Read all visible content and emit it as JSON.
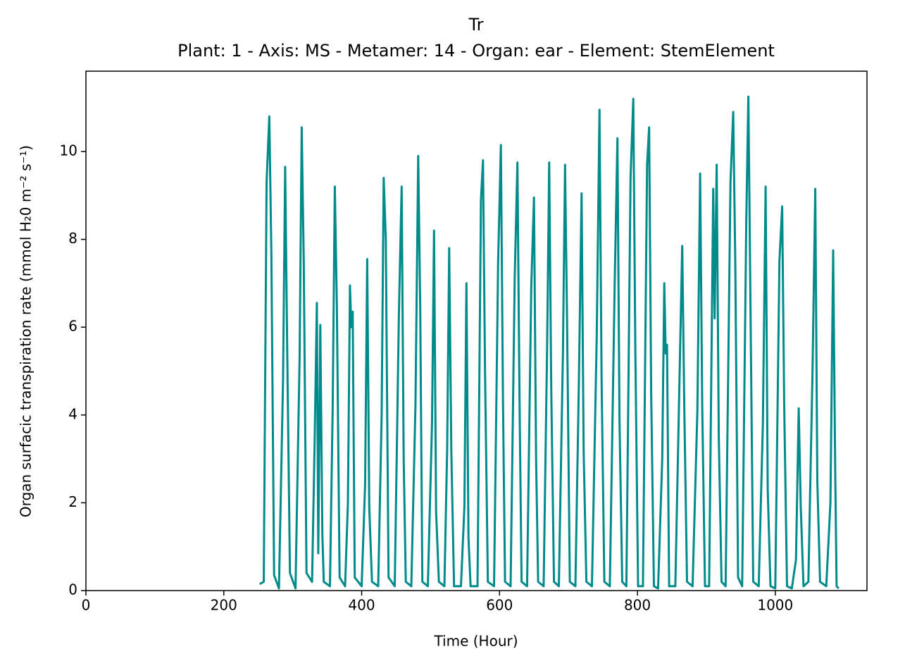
{
  "chart_data": {
    "type": "line",
    "title": "Tr",
    "subtitle": "Plant: 1 - Axis: MS - Metamer: 14 - Organ: ear - Element: StemElement",
    "xlabel": "Time (Hour)",
    "ylabel": "Organ surfacic transpiration rate (mmol H₂0 m⁻² s⁻¹)",
    "color": "#008b8b",
    "xlim": [
      0,
      1133
    ],
    "ylim": [
      0,
      11.83
    ],
    "xticks": [
      0,
      200,
      400,
      600,
      800,
      1000
    ],
    "yticks": [
      0,
      2,
      4,
      6,
      8,
      10
    ],
    "x": [
      252,
      258,
      262,
      266,
      269,
      273,
      280,
      286,
      289,
      292,
      296,
      304,
      310,
      313,
      316,
      320,
      328,
      332,
      335,
      337,
      340,
      343,
      345,
      354,
      358,
      361,
      364,
      368,
      376,
      380,
      383,
      385,
      387,
      390,
      400,
      405,
      408,
      411,
      415,
      424,
      429,
      432,
      435,
      439,
      448,
      454,
      458,
      461,
      464,
      472,
      478,
      482,
      485,
      488,
      496,
      502,
      505,
      508,
      512,
      520,
      524,
      527,
      530,
      534,
      544,
      549,
      552,
      555,
      558,
      568,
      573,
      576,
      579,
      583,
      592,
      598,
      602,
      605,
      608,
      616,
      622,
      626,
      629,
      632,
      640,
      646,
      650,
      653,
      656,
      664,
      669,
      672,
      675,
      679,
      686,
      692,
      695,
      698,
      702,
      710,
      715,
      719,
      722,
      726,
      734,
      741,
      745,
      748,
      752,
      760,
      767,
      771,
      774,
      778,
      784,
      790,
      794,
      797,
      801,
      808,
      814,
      817,
      820,
      824,
      830,
      836,
      839,
      841,
      843,
      846,
      855,
      861,
      865,
      868,
      872,
      880,
      887,
      891,
      894,
      898,
      904,
      910,
      912,
      915,
      918,
      922,
      928,
      935,
      939,
      942,
      946,
      952,
      958,
      961,
      964,
      968,
      976,
      982,
      986,
      989,
      993,
      1000,
      1006,
      1010,
      1013,
      1017,
      1024,
      1030,
      1034,
      1037,
      1041,
      1048,
      1054,
      1058,
      1061,
      1065,
      1074,
      1080,
      1084,
      1087,
      1089,
      1092
    ],
    "values": [
      0.15,
      0.2,
      9.3,
      10.8,
      7.7,
      0.35,
      0.05,
      4.8,
      9.65,
      5.5,
      0.4,
      0.05,
      5.3,
      10.55,
      7.5,
      0.4,
      0.2,
      3.6,
      6.55,
      0.85,
      6.05,
      1.3,
      0.2,
      0.1,
      4.2,
      9.2,
      6.5,
      0.3,
      0.1,
      2.0,
      6.95,
      6.0,
      6.35,
      0.3,
      0.1,
      2.4,
      7.55,
      1.9,
      0.2,
      0.1,
      4.0,
      9.4,
      8.0,
      0.3,
      0.1,
      6.3,
      9.2,
      3.0,
      0.2,
      0.1,
      4.2,
      9.9,
      6.4,
      0.2,
      0.1,
      3.8,
      8.2,
      1.8,
      0.2,
      0.1,
      3.2,
      7.8,
      3.2,
      0.1,
      0.1,
      1.9,
      7.0,
      1.2,
      0.1,
      0.1,
      8.9,
      9.8,
      5.0,
      0.2,
      0.1,
      7.5,
      10.15,
      4.3,
      0.2,
      0.1,
      7.1,
      9.75,
      4.3,
      0.2,
      0.1,
      6.9,
      8.95,
      3.0,
      0.2,
      0.1,
      5.5,
      9.75,
      4.6,
      0.2,
      0.1,
      5.4,
      9.7,
      6.1,
      0.2,
      0.1,
      4.7,
      9.05,
      3.2,
      0.2,
      0.1,
      5.8,
      10.95,
      4.8,
      0.2,
      0.1,
      7.0,
      10.3,
      3.9,
      0.2,
      0.1,
      9.4,
      11.2,
      5.5,
      0.1,
      0.1,
      9.7,
      10.55,
      4.5,
      0.1,
      0.05,
      3.0,
      7.0,
      5.4,
      5.6,
      0.1,
      0.1,
      4.8,
      7.85,
      4.2,
      0.2,
      0.1,
      4.1,
      9.5,
      4.2,
      0.1,
      0.1,
      9.15,
      6.2,
      9.7,
      3.5,
      0.2,
      0.1,
      9.3,
      10.9,
      7.5,
      0.3,
      0.1,
      8.5,
      11.25,
      6.5,
      0.2,
      0.1,
      3.8,
      9.2,
      2.3,
      0.1,
      0.05,
      7.5,
      8.75,
      4.2,
      0.1,
      0.05,
      0.7,
      4.15,
      1.9,
      0.1,
      0.2,
      5.0,
      9.15,
      2.5,
      0.2,
      0.1,
      2.0,
      7.75,
      2.6,
      0.1,
      0.05
    ]
  }
}
